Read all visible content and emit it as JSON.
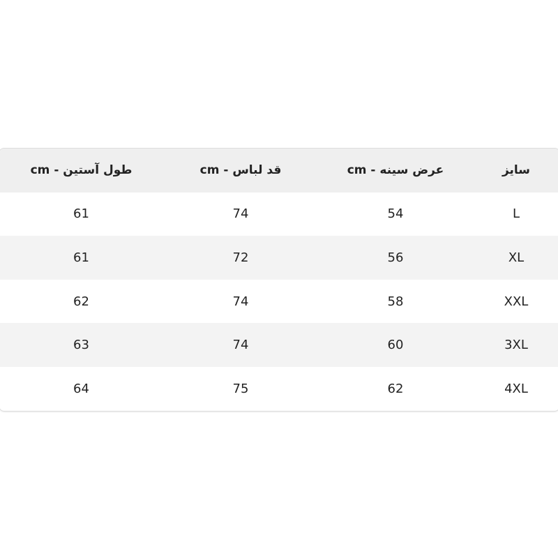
{
  "table": {
    "headers": [
      "سایز",
      "عرض سینه - cm",
      "قد لباس - cm",
      "طول آستین - cm"
    ],
    "rows": [
      [
        "L",
        "54",
        "74",
        "61"
      ],
      [
        "XL",
        "56",
        "72",
        "61"
      ],
      [
        "XXL",
        "58",
        "74",
        "62"
      ],
      [
        "3XL",
        "60",
        "74",
        "63"
      ],
      [
        "4XL",
        "62",
        "75",
        "64"
      ]
    ],
    "colors": {
      "header_bg": "#efefef",
      "alt_row_bg": "#f3f3f3",
      "text": "#222222"
    }
  }
}
